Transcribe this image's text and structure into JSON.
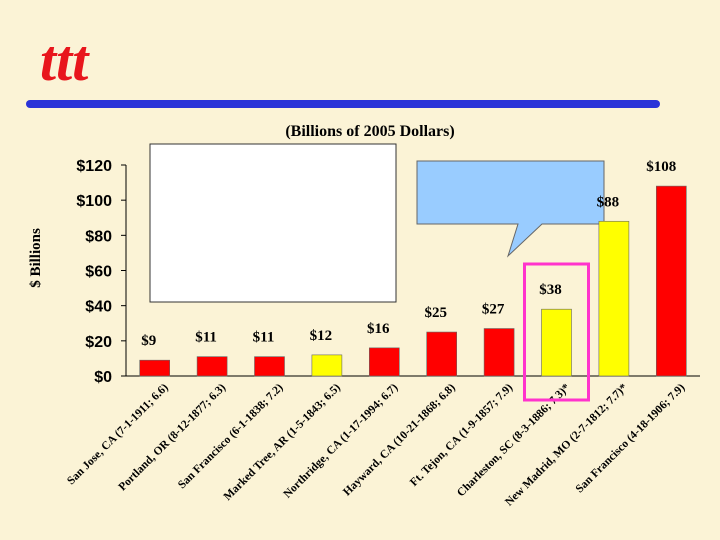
{
  "logo": {
    "text": "ttt",
    "color": "#e8161c"
  },
  "colors": {
    "background": "#fbf3d6",
    "rule": "#2a33d8",
    "bar_default": "#ff0000",
    "bar_highlight": "#ffff00",
    "callout_fill": "#99ccff",
    "highlight_box": "#ff33cc"
  },
  "chart_data": {
    "type": "bar",
    "title": "(Billions of 2005 Dollars)",
    "ylabel": "$ Billions",
    "xlabel": "",
    "ylim": [
      0,
      120
    ],
    "yticks": [
      0,
      20,
      40,
      60,
      80,
      100,
      120
    ],
    "ytick_labels": [
      "$0",
      "$20",
      "$40",
      "$60",
      "$80",
      "$100",
      "$120"
    ],
    "grid": false,
    "categories": [
      "San Jose, CA (7-1-1911; 6.6)",
      "Portland, OR (8-12-1877; 6.3)",
      "San Francisco (6-1-1838; 7.2)",
      "Marked Tree, AR (1-5-1843; 6.5)",
      "Northridge, CA (1-17-1994; 6.7)",
      "Hayward, CA (10-21-1868; 6.8)",
      "Ft. Tejon, CA (1-9-1857; 7.9)",
      "Charleston, SC (8-3-1886; 7.3)*",
      "New Madrid, MO (2-7-1812; 7.7)*",
      "San Francisco (4-18-1906; 7.9)"
    ],
    "values": [
      9,
      11,
      11,
      12,
      16,
      25,
      27,
      38,
      88,
      108
    ],
    "value_labels": [
      "$9",
      "$11",
      "$11",
      "$12",
      "$16",
      "$25",
      "$27",
      "$38",
      "$88",
      "$108"
    ],
    "highlighted": [
      false,
      false,
      false,
      true,
      false,
      false,
      false,
      true,
      true,
      false
    ],
    "boxed_index": 7
  }
}
